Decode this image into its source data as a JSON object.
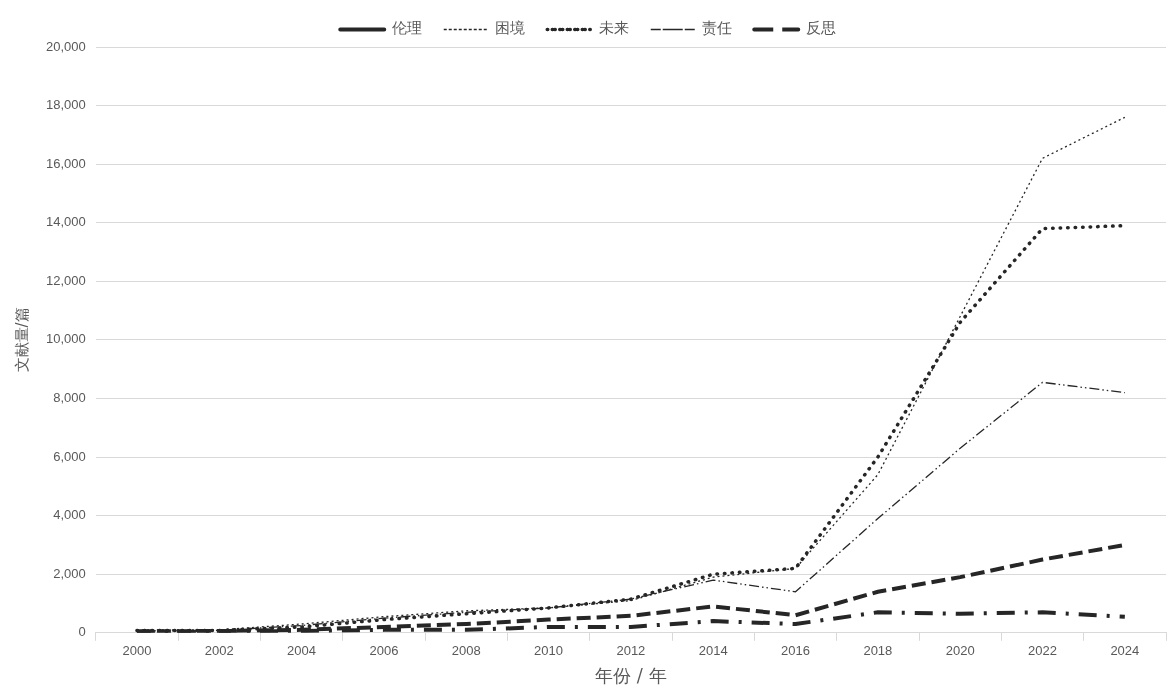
{
  "chart_data": {
    "type": "line",
    "xlabel": "年份 / 年",
    "ylabel": "文献量/篇",
    "categories": [
      "2000",
      "2002",
      "2004",
      "2006",
      "2008",
      "2010",
      "2012",
      "2014",
      "2016",
      "2018",
      "2020",
      "2022",
      "2024"
    ],
    "series": [
      {
        "name": "伦理",
        "color": "#262626",
        "line_style": "dashed",
        "values": [
          50,
          60,
          100,
          200,
          300,
          450,
          580,
          900,
          600,
          1400,
          1900,
          2500,
          3000
        ]
      },
      {
        "name": "困境",
        "color": "#262626",
        "line_style": "dotted",
        "values": [
          100,
          100,
          300,
          550,
          750,
          850,
          1100,
          1900,
          2200,
          5400,
          10800,
          16200,
          17600
        ]
      },
      {
        "name": "未来",
        "color": "#262626",
        "line_style": "dotted",
        "values": [
          80,
          80,
          200,
          450,
          650,
          850,
          1150,
          2000,
          2200,
          6000,
          10600,
          13800,
          13900
        ]
      },
      {
        "name": "责任",
        "color": "#262626",
        "line_style": "dashed",
        "values": [
          60,
          80,
          250,
          500,
          700,
          850,
          1150,
          1800,
          1400,
          3900,
          6300,
          8550,
          8200
        ]
      },
      {
        "name": "反思",
        "color": "#262626",
        "line_style": "dashed",
        "values": [
          30,
          40,
          60,
          100,
          100,
          200,
          200,
          400,
          300,
          700,
          650,
          700,
          550
        ]
      }
    ],
    "ylim": [
      0,
      20000
    ],
    "yticks": [
      0,
      {
        "value": 2000,
        "label": "2,000"
      },
      {
        "value": 4000,
        "label": "4,000"
      },
      {
        "value": 6000,
        "label": "6,000"
      },
      {
        "value": 8000,
        "label": "8,000"
      },
      {
        "value": 10000,
        "label": "10,000"
      },
      {
        "value": 12000,
        "label": "12,000"
      },
      {
        "value": 14000,
        "label": "14,000"
      },
      {
        "value": 16000,
        "label": "16,000"
      },
      {
        "value": 18000,
        "label": "18,000"
      },
      {
        "value": 20000,
        "label": "20,000"
      }
    ],
    "grid": "y",
    "legend": "top",
    "marker": "none"
  }
}
